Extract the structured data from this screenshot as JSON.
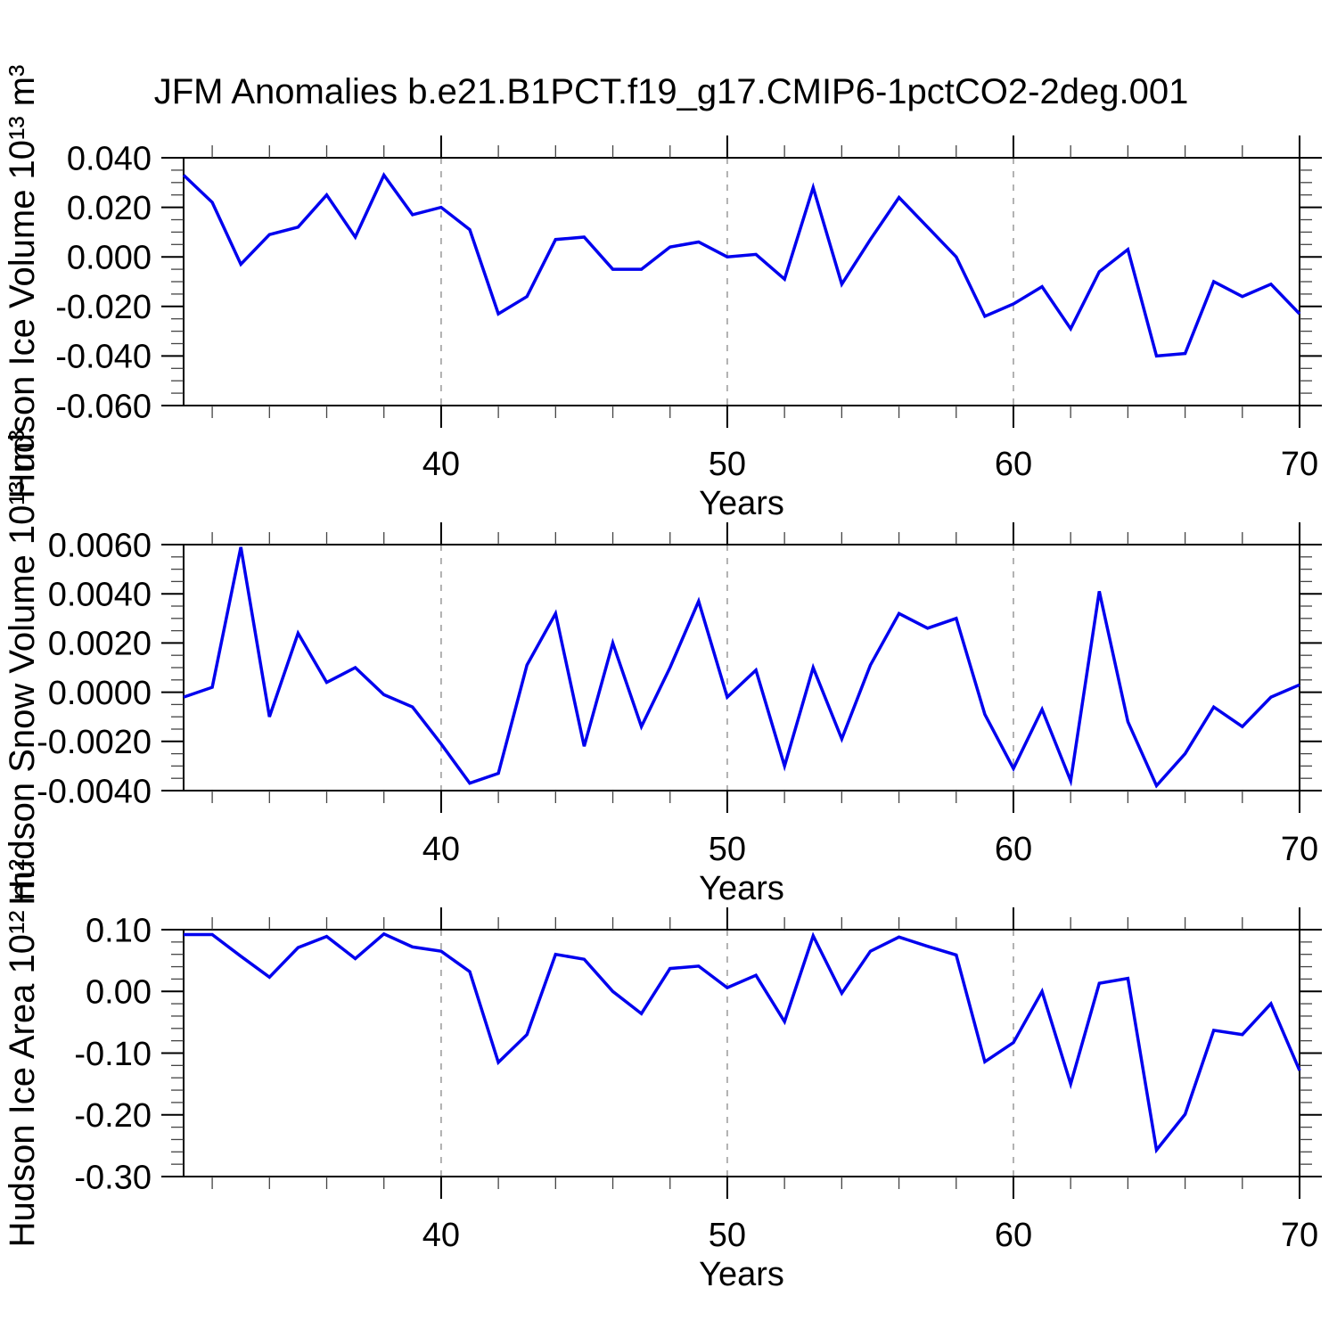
{
  "title": "JFM Anomalies b.e21.B1PCT.f19_g17.CMIP6-1pctCO2-2deg.001",
  "colors": {
    "line": "#0000ee",
    "frame": "#000000",
    "gridline": "#999999",
    "major_tick": "#000000",
    "minor_tick": "#444444",
    "text": "#000000",
    "background": "#ffffff"
  },
  "x_axis": {
    "label": "Years",
    "range": [
      31,
      70
    ],
    "major_ticks": [
      40,
      50,
      60,
      70
    ],
    "minor_tick_step": 2,
    "gridlines_at": [
      40,
      50,
      60
    ]
  },
  "chart_data": [
    {
      "type": "line",
      "name": "hudson-ice-volume",
      "ylabel": "Hudson Ice Volume 10¹³ m³",
      "xlabel": "Years",
      "ylim": [
        -0.06,
        0.04
      ],
      "y_major_ticks": [
        0.04,
        0.02,
        0.0,
        -0.02,
        -0.04,
        -0.06
      ],
      "y_minor_step": 0.005,
      "y_decimals": 3,
      "grid": "x-dashed",
      "legend": "none",
      "x": [
        31,
        32,
        33,
        34,
        35,
        36,
        37,
        38,
        39,
        40,
        41,
        42,
        43,
        44,
        45,
        46,
        47,
        48,
        49,
        50,
        51,
        52,
        53,
        54,
        55,
        56,
        57,
        58,
        59,
        60,
        61,
        62,
        63,
        64,
        65,
        66,
        67,
        68,
        69,
        70
      ],
      "values": [
        0.033,
        0.022,
        -0.003,
        0.009,
        0.012,
        0.025,
        0.008,
        0.033,
        0.017,
        0.02,
        0.011,
        -0.023,
        -0.016,
        0.007,
        0.008,
        -0.005,
        -0.005,
        0.004,
        0.006,
        0.0,
        0.001,
        -0.009,
        0.028,
        -0.011,
        0.007,
        0.024,
        0.012,
        0.0,
        -0.024,
        -0.019,
        -0.012,
        -0.029,
        -0.006,
        0.003,
        -0.04,
        -0.039,
        -0.01,
        -0.016,
        -0.011,
        -0.023
      ]
    },
    {
      "type": "line",
      "name": "hudson-snow-volume",
      "ylabel": "Hudson Snow Volume 10¹³ m³",
      "xlabel": "Years",
      "ylim": [
        -0.004,
        0.006
      ],
      "y_major_ticks": [
        0.006,
        0.004,
        0.002,
        0.0,
        -0.002,
        -0.004
      ],
      "y_minor_step": 0.0005,
      "y_decimals": 4,
      "grid": "x-dashed",
      "legend": "none",
      "x": [
        31,
        32,
        33,
        34,
        35,
        36,
        37,
        38,
        39,
        40,
        41,
        42,
        43,
        44,
        45,
        46,
        47,
        48,
        49,
        50,
        51,
        52,
        53,
        54,
        55,
        56,
        57,
        58,
        59,
        60,
        61,
        62,
        63,
        64,
        65,
        66,
        67,
        68,
        69,
        70
      ],
      "values": [
        -0.0002,
        0.0002,
        0.0059,
        -0.001,
        0.0024,
        0.0004,
        0.001,
        -0.0001,
        -0.0006,
        -0.0021,
        -0.0037,
        -0.0033,
        0.0011,
        0.0032,
        -0.0022,
        0.002,
        -0.0014,
        0.001,
        0.0037,
        -0.0002,
        0.0009,
        -0.003,
        0.001,
        -0.0019,
        0.0011,
        0.0032,
        0.0026,
        0.003,
        -0.0009,
        -0.0031,
        -0.0007,
        -0.0036,
        0.0041,
        -0.0012,
        -0.0038,
        -0.0025,
        -0.0006,
        -0.0014,
        -0.0002,
        0.0003
      ]
    },
    {
      "type": "line",
      "name": "hudson-ice-area",
      "ylabel": "Hudson Ice Area 10¹² m²",
      "xlabel": "Years",
      "ylim": [
        -0.3,
        0.1
      ],
      "y_major_ticks": [
        0.1,
        0.0,
        -0.1,
        -0.2,
        -0.3
      ],
      "y_minor_step": 0.02,
      "y_decimals": 2,
      "grid": "x-dashed",
      "legend": "none",
      "x": [
        31,
        32,
        33,
        34,
        35,
        36,
        37,
        38,
        39,
        40,
        41,
        42,
        43,
        44,
        45,
        46,
        47,
        48,
        49,
        50,
        51,
        52,
        53,
        54,
        55,
        56,
        57,
        58,
        59,
        60,
        61,
        62,
        63,
        64,
        65,
        66,
        67,
        68,
        69,
        70
      ],
      "values": [
        0.092,
        0.092,
        0.057,
        0.023,
        0.071,
        0.089,
        0.053,
        0.093,
        0.072,
        0.065,
        0.032,
        -0.115,
        -0.07,
        0.06,
        0.052,
        0.0,
        -0.036,
        0.037,
        0.041,
        0.006,
        0.026,
        -0.049,
        0.09,
        -0.003,
        0.065,
        0.088,
        0.073,
        0.059,
        -0.114,
        -0.083,
        0.0,
        -0.15,
        0.013,
        0.021,
        -0.257,
        -0.199,
        -0.063,
        -0.07,
        -0.02,
        -0.128
      ]
    }
  ]
}
